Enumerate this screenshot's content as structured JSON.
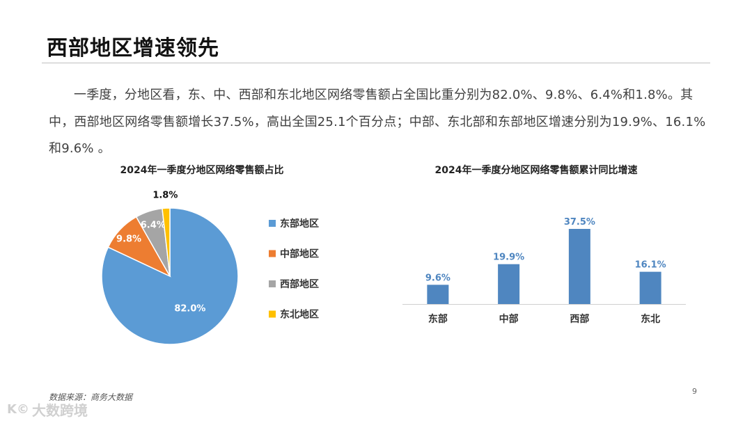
{
  "slide": {
    "title": "西部地区增速领先",
    "body": "一季度，分地区看，东、中、西部和东北地区网络零售额占全国比重分别为82.0%、9.8%、6.4%和1.8%。其中，西部地区网络零售额增长37.5%，高出全国25.1个百分点；中部、东北部和东部地区增速分别为19.9%、16.1%和9.6% 。",
    "source": "数据来源：商务大数据",
    "page_number": "9",
    "watermark_text": "大数跨境",
    "watermark_logo": "K©"
  },
  "colors": {
    "east": "#5b9bd5",
    "central": "#ed7d31",
    "west": "#a5a5a5",
    "northeast": "#ffc000",
    "bar": "#4f86c0",
    "bar_label": "#4f86c0"
  },
  "chart_data": [
    {
      "type": "pie",
      "title": "2024年一季度分地区网络零售额占比",
      "categories": [
        "东部地区",
        "中部地区",
        "西部地区",
        "东北地区"
      ],
      "values": [
        82.0,
        9.8,
        6.4,
        1.8
      ],
      "labels": [
        "82.0%",
        "9.8%",
        "6.4%",
        "1.8%"
      ],
      "legend_position": "right"
    },
    {
      "type": "bar",
      "title": "2024年一季度分地区网络零售额累计同比增速",
      "categories": [
        "东部",
        "中部",
        "西部",
        "东北"
      ],
      "values": [
        9.6,
        19.9,
        37.5,
        16.1
      ],
      "labels": [
        "9.6%",
        "19.9%",
        "37.5%",
        "16.1%"
      ],
      "grid": false
    }
  ]
}
